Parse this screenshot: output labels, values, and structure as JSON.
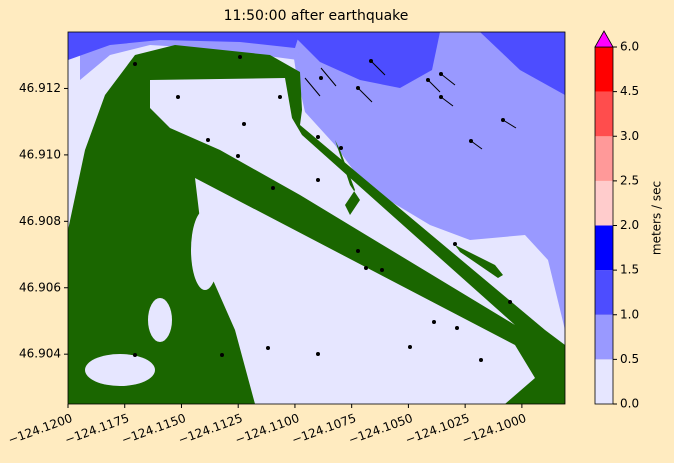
{
  "chart_data": {
    "type": "contourf",
    "title": "11:50:00 after earthquake",
    "xlim": [
      -124.12,
      -124.0981
    ],
    "ylim": [
      46.9025,
      46.9137
    ],
    "xticks": [
      {
        "value": -124.12,
        "label": "−124.1200"
      },
      {
        "value": -124.1175,
        "label": "−124.1175"
      },
      {
        "value": -124.115,
        "label": "−124.1150"
      },
      {
        "value": -124.1125,
        "label": "−124.1125"
      },
      {
        "value": -124.11,
        "label": "−124.1100"
      },
      {
        "value": -124.1075,
        "label": "−124.1075"
      },
      {
        "value": -124.105,
        "label": "−124.1050"
      },
      {
        "value": -124.1025,
        "label": "−124.1025"
      },
      {
        "value": -124.1,
        "label": "−124.1000"
      }
    ],
    "yticks": [
      46.904,
      46.906,
      46.908,
      {
        "value": 46.91,
        "label": "46.910"
      },
      46.912
    ],
    "colorbar": {
      "label": "meters / sec",
      "ticks": [
        {
          "value": 0,
          "label": "0.0"
        },
        0.5,
        {
          "value": 1,
          "label": "1.0"
        },
        1.5,
        {
          "value": 2,
          "label": "2.0"
        },
        2.5,
        {
          "value": 3,
          "label": "3.0"
        },
        4.5,
        {
          "value": 6,
          "label": "6.0"
        }
      ],
      "colors": [
        "#e6e6ff",
        "#9999ff",
        "#4d4dff",
        "#0000ff",
        "#ffcccc",
        "#ff9999",
        "#ff4d4d",
        "#ff0000"
      ],
      "extend_color": "#ff00ff"
    }
  }
}
